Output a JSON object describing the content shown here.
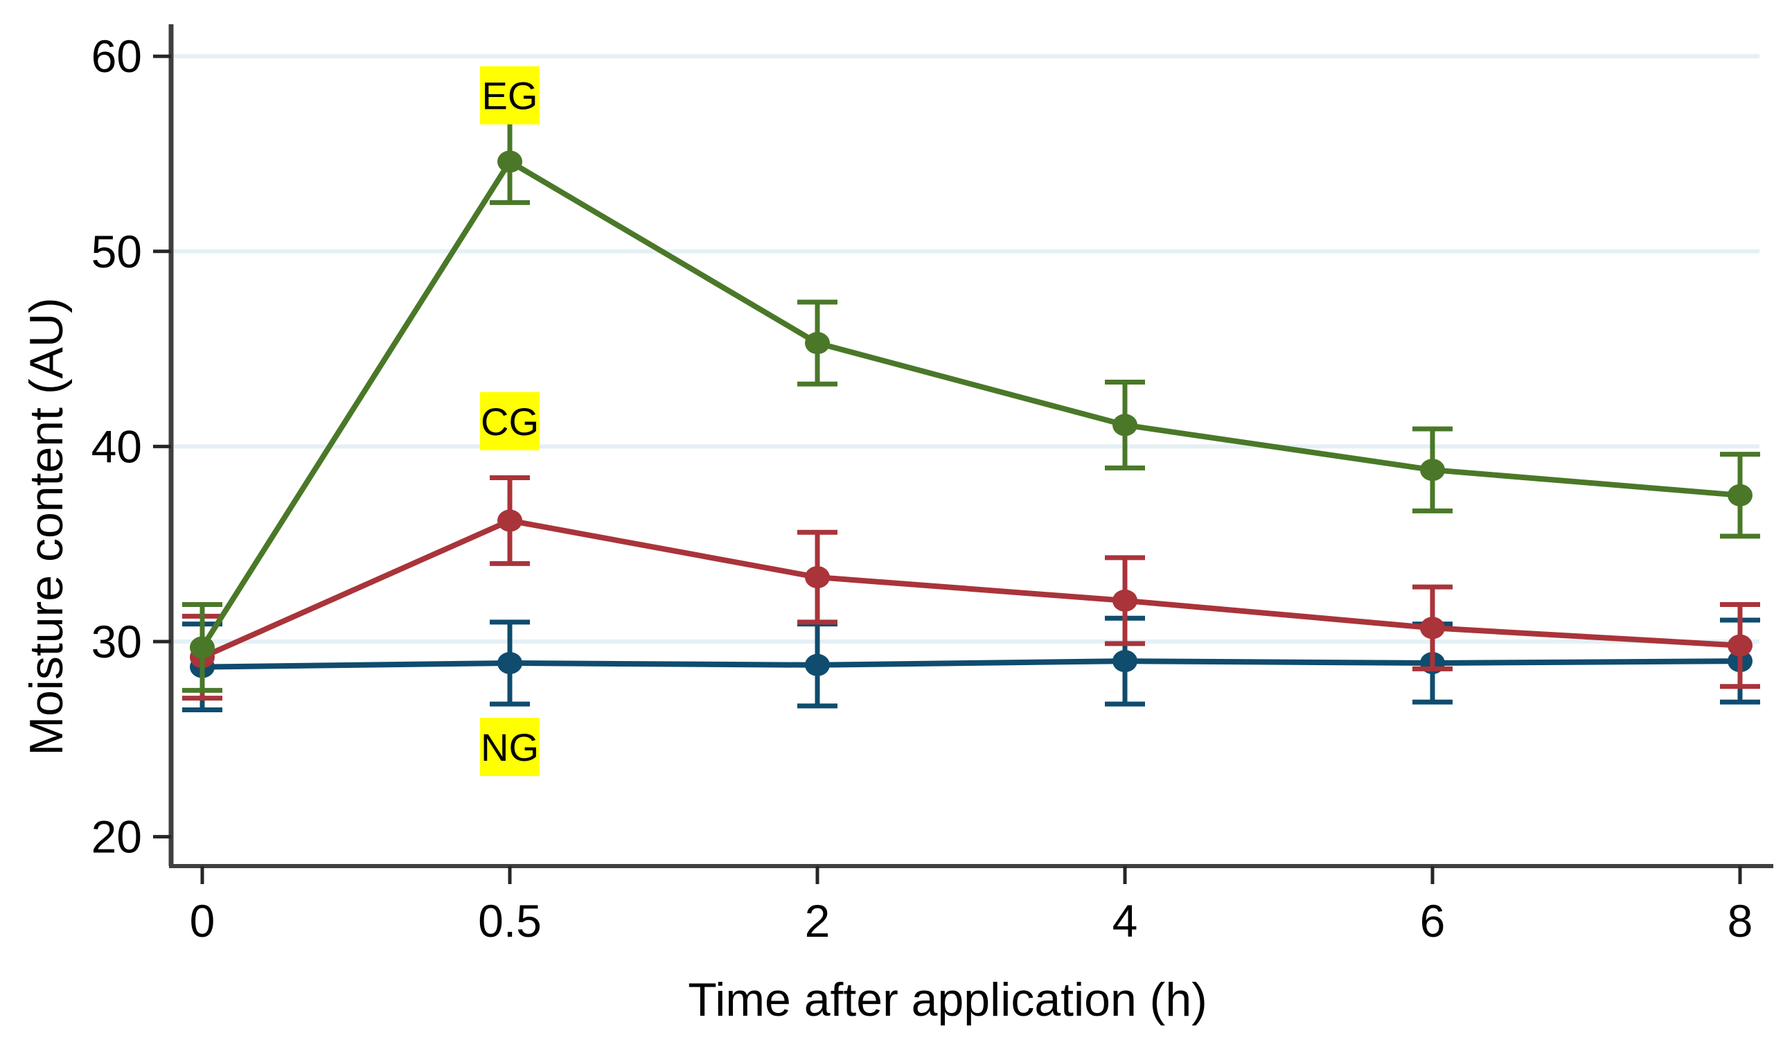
{
  "chart_data": {
    "type": "line",
    "title": "",
    "xlabel": "Time after application (h)",
    "ylabel": "Moisture content (AU)",
    "x": [
      0,
      0.5,
      2,
      4,
      6,
      8
    ],
    "x_tick_labels": [
      "0",
      "0.5",
      "2",
      "4",
      "6",
      "8"
    ],
    "ylim": [
      20,
      60
    ],
    "y_ticks": [
      20,
      30,
      40,
      50,
      60
    ],
    "gridline_values": [
      30,
      40,
      50,
      60
    ],
    "grid": "horizontal-only",
    "legend": "inline yellow-highlighted labels near 0.5 h points",
    "marker": "filled-circle-with-error-bars",
    "series": [
      {
        "name": "EG",
        "color": "#4a7828",
        "values": [
          29.7,
          54.6,
          45.3,
          41.1,
          38.8,
          37.5
        ],
        "errors": [
          2.2,
          2.1,
          2.1,
          2.2,
          2.1,
          2.1
        ]
      },
      {
        "name": "CG",
        "color": "#a9343a",
        "values": [
          29.2,
          36.2,
          33.3,
          32.1,
          30.7,
          29.8
        ],
        "errors": [
          2.1,
          2.2,
          2.3,
          2.2,
          2.1,
          2.1
        ]
      },
      {
        "name": "NG",
        "color": "#0f4c6e",
        "values": [
          28.7,
          28.9,
          28.8,
          29.0,
          28.9,
          29.0
        ],
        "errors": [
          2.2,
          2.1,
          2.1,
          2.2,
          2.0,
          2.1
        ]
      }
    ],
    "series_labels": [
      {
        "text": "EG",
        "x_index": 1,
        "center_y_value": 58.0
      },
      {
        "text": "CG",
        "x_index": 1,
        "center_y_value": 41.3
      },
      {
        "text": "NG",
        "x_index": 1,
        "center_y_value": 24.6
      }
    ],
    "colors": {
      "label_highlight": "#ffff00",
      "gridline": "#e4f0f5",
      "axis_line": "#3f3f3f",
      "tick": "#262626",
      "text": "#000000",
      "background": "#ffffff"
    }
  }
}
